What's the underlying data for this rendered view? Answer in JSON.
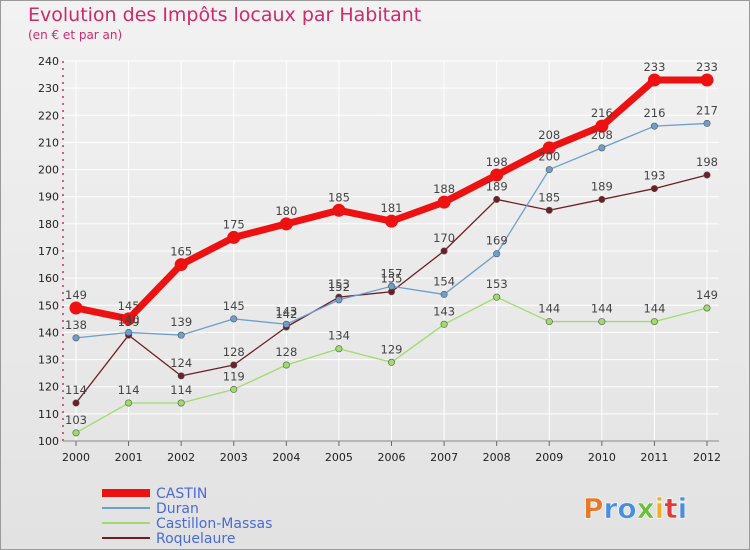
{
  "title": "Evolution des Impôts locaux par Habitant",
  "subtitle": "(en € et par an)",
  "logo_text": "Proxiti",
  "colors": {
    "title": "#cc2b6e",
    "grid": "#ffffff",
    "axis": "#cc2b6e",
    "legend_text": "#4a6ad8"
  },
  "chart_data": {
    "type": "line",
    "title": "Evolution des Impôts locaux par Habitant",
    "ylabel": "(en € et par an)",
    "xlabel": "",
    "x": [
      "2000",
      "2001",
      "2002",
      "2003",
      "2004",
      "2005",
      "2006",
      "2007",
      "2008",
      "2009",
      "2010",
      "2011",
      "2012"
    ],
    "ylim": [
      100,
      240
    ],
    "yticks": [
      "100",
      "110",
      "120",
      "130",
      "140",
      "150",
      "160",
      "170",
      "180",
      "190",
      "200",
      "210",
      "220",
      "230",
      "240"
    ],
    "grid": true,
    "legend": "bottom-left",
    "series": [
      {
        "name": "CASTIN",
        "color": "#ee1111",
        "values": [
          149,
          145,
          165,
          175,
          180,
          185,
          181,
          188,
          198,
          208,
          216,
          233,
          233
        ]
      },
      {
        "name": "Duran",
        "color": "#6c9ecf",
        "values": [
          138,
          140,
          139,
          145,
          143,
          152,
          157,
          154,
          169,
          200,
          208,
          216,
          217
        ]
      },
      {
        "name": "Castillon-Massas",
        "color": "#9fdc6a",
        "values": [
          103,
          114,
          114,
          119,
          128,
          134,
          129,
          143,
          153,
          144,
          144,
          144,
          149
        ]
      },
      {
        "name": "Roquelaure",
        "color": "#6e1f24",
        "values": [
          114,
          139,
          124,
          128,
          142,
          153,
          155,
          170,
          189,
          185,
          189,
          193,
          198
        ]
      }
    ]
  }
}
